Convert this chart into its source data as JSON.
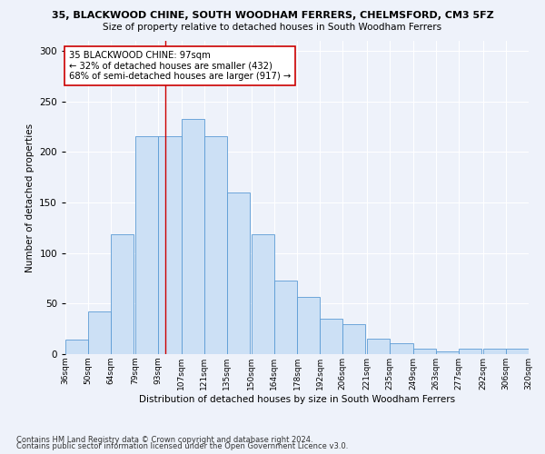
{
  "title": "35, BLACKWOOD CHINE, SOUTH WOODHAM FERRERS, CHELMSFORD, CM3 5FZ",
  "subtitle": "Size of property relative to detached houses in South Woodham Ferrers",
  "xlabel": "Distribution of detached houses by size in South Woodham Ferrers",
  "ylabel": "Number of detached properties",
  "categories": [
    "36sqm",
    "50sqm",
    "64sqm",
    "79sqm",
    "93sqm",
    "107sqm",
    "121sqm",
    "135sqm",
    "150sqm",
    "164sqm",
    "178sqm",
    "192sqm",
    "206sqm",
    "221sqm",
    "235sqm",
    "249sqm",
    "263sqm",
    "277sqm",
    "292sqm",
    "306sqm",
    "320sqm"
  ],
  "bar_heights": [
    14,
    42,
    119,
    216,
    216,
    233,
    216,
    160,
    119,
    73,
    57,
    35,
    30,
    15,
    11,
    5,
    3,
    5,
    5,
    5
  ],
  "bin_left": [
    36,
    50,
    64,
    79,
    93,
    107,
    121,
    135,
    150,
    164,
    178,
    192,
    206,
    221,
    235,
    249,
    263,
    277,
    292,
    306
  ],
  "bin_width": 14,
  "bar_color": "#cce0f5",
  "bar_edge_color": "#5b9bd5",
  "vline_x": 97,
  "vline_color": "#cc0000",
  "annotation_text": "35 BLACKWOOD CHINE: 97sqm\n← 32% of detached houses are smaller (432)\n68% of semi-detached houses are larger (917) →",
  "annotation_box_color": "white",
  "annotation_box_edge": "#cc0000",
  "ylim": [
    0,
    310
  ],
  "yticks": [
    0,
    50,
    100,
    150,
    200,
    250,
    300
  ],
  "footer1": "Contains HM Land Registry data © Crown copyright and database right 2024.",
  "footer2": "Contains public sector information licensed under the Open Government Licence v3.0.",
  "bg_color": "#eef2fa",
  "plot_bg_color": "#eef2fa"
}
